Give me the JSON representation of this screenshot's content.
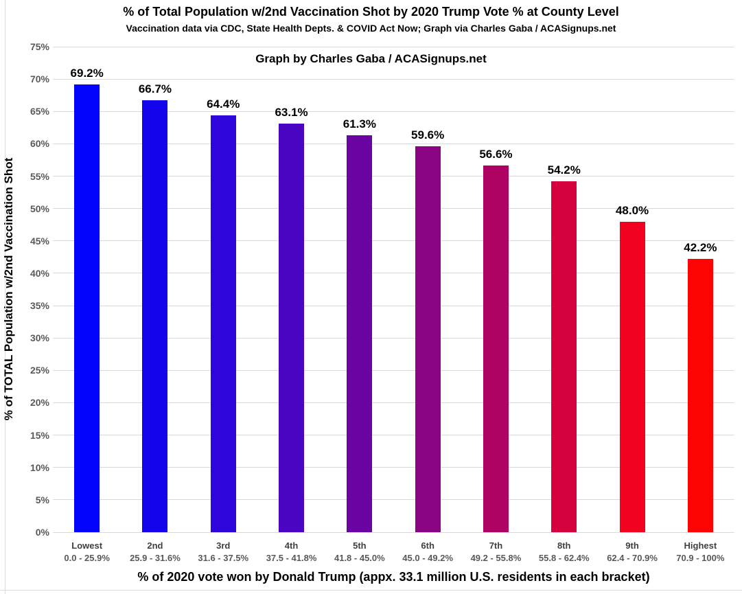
{
  "header": {
    "title": "% of Total Population w/2nd Vaccination Shot by 2020 Trump Vote % at County Level",
    "subtitle": "Vaccination data via CDC, State Health Depts. & COVID Act Now; Graph via Charles Gaba / ACASignups.net",
    "annotation": "Graph by Charles Gaba / ACASignups.net"
  },
  "chart_data": {
    "type": "bar",
    "title": "% of Total Population w/2nd Vaccination Shot by 2020 Trump Vote % at County Level",
    "subtitle": "Vaccination data via CDC, State Health Depts. & COVID Act Now; Graph via Charles Gaba / ACASignups.net",
    "annotation": "Graph by Charles Gaba / ACASignups.net",
    "xlabel": "% of 2020 vote won by Donald Trump (appx. 33.1 million U.S. residents in each bracket)",
    "ylabel": "% of TOTAL Population w/2nd Vaccination Shot",
    "ylim": [
      0,
      75
    ],
    "ytick_step": 5,
    "ytick_labels": [
      "0%",
      "5%",
      "10%",
      "15%",
      "20%",
      "25%",
      "30%",
      "35%",
      "40%",
      "45%",
      "50%",
      "55%",
      "60%",
      "65%",
      "70%",
      "75%"
    ],
    "grid": true,
    "legend": "none",
    "categories": [
      "Lowest",
      "2nd",
      "3rd",
      "4th",
      "5th",
      "6th",
      "7th",
      "8th",
      "9th",
      "Highest"
    ],
    "category_ranges": [
      "0.0 - 25.9%",
      "25.9 - 31.6%",
      "31.6 - 37.5%",
      "37.5 - 41.8%",
      "41.8 - 45.0%",
      "45.0 - 49.2%",
      "49.2 - 55.8%",
      "55.8 - 62.4%",
      "62.4 - 70.9%",
      "70.9 - 100%"
    ],
    "values": [
      69.2,
      66.7,
      64.4,
      63.1,
      61.3,
      59.6,
      56.6,
      54.2,
      48.0,
      42.2
    ],
    "value_labels": [
      "69.2%",
      "66.7%",
      "64.4%",
      "63.1%",
      "61.3%",
      "59.6%",
      "56.6%",
      "54.2%",
      "48.0%",
      "42.2%"
    ],
    "bar_colors": [
      "#0404fc",
      "#1404ec",
      "#2e06dc",
      "#4a05c2",
      "#6a05a4",
      "#8a0484",
      "#ae0362",
      "#d60240",
      "#f00220",
      "#fc0404"
    ]
  },
  "colors": {
    "background": "#ffffff",
    "gridline": "#d9d9d9",
    "axis_line": "#d9d9d9",
    "y_tick_text": "#595959",
    "x_tick_text": "#3f3f3f",
    "x_range_text": "#595959",
    "value_label_text": "#000000",
    "title_text": "#000000"
  }
}
